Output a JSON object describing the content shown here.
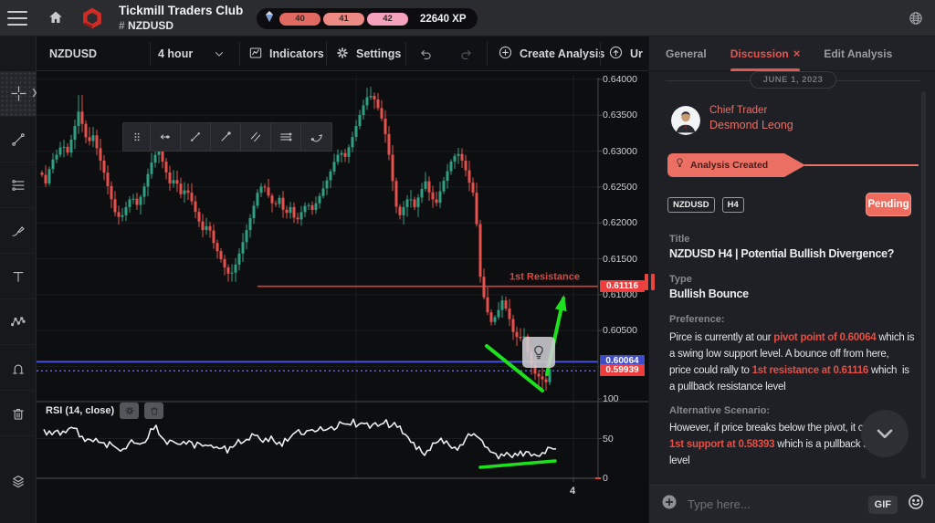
{
  "topbar": {
    "title": "Tickmill Traders Club",
    "channel_hash": "#",
    "channel": "NZDUSD",
    "xp_total": "22640 XP",
    "xp_levels": [
      {
        "label": "40",
        "color": "#e06962"
      },
      {
        "label": "41",
        "color": "#ee8a84"
      },
      {
        "label": "42",
        "color": "#f5a2bd"
      }
    ]
  },
  "chart_toolbar": {
    "symbol": "NZDUSD",
    "timeframe": "4 hour",
    "indicators": "Indicators",
    "settings": "Settings",
    "create_analysis": "Create Analysis",
    "upload": "Ur"
  },
  "chart_data": {
    "type": "candlestick",
    "symbol": "NZDUSD",
    "interval": "4 hour",
    "price_pane": {
      "ylim": [
        0.5951,
        0.6405
      ],
      "ticks": [
        {
          "label": "0.64000",
          "v": 0.64
        },
        {
          "label": "0.63500",
          "v": 0.635
        },
        {
          "label": "0.63000",
          "v": 0.63
        },
        {
          "label": "0.62500",
          "v": 0.625
        },
        {
          "label": "0.62000",
          "v": 0.62
        },
        {
          "label": "0.61500",
          "v": 0.615
        },
        {
          "label": "0.61000",
          "v": 0.61
        },
        {
          "label": "0.60500",
          "v": 0.605
        }
      ],
      "grid_prices": [
        0.64,
        0.635,
        0.63,
        0.625,
        0.62,
        0.615,
        0.61,
        0.605,
        0.6
      ],
      "levels": [
        {
          "v": 0.61116,
          "color": "#e13a35",
          "x1": 242,
          "x2": 615,
          "w": 1.6,
          "dash": ""
        },
        {
          "v": 0.60064,
          "color": "#4650dd",
          "x1": 0,
          "x2": 615,
          "w": 2,
          "dash": ""
        },
        {
          "v": 0.59939,
          "color": "#7678e0",
          "x1": 0,
          "x2": 615,
          "w": 1.2,
          "dash": "2,3"
        }
      ],
      "tags": [
        {
          "label": "0.61116",
          "v": 0.61116,
          "bg": "#ee3d3c"
        },
        {
          "label": "0.60064",
          "v": 0.60064,
          "bg": "#3f4cc9"
        },
        {
          "label": "0.59939",
          "v": 0.59939,
          "bg": "#ee3d3c"
        }
      ],
      "resistance_label": {
        "text": "1st Resistance",
        "color": "#e2443d",
        "v": 0.61116
      }
    },
    "candles": {
      "up_color": "#2fa084",
      "down_color": "#e8504e",
      "anchors": [
        [
          45,
          0.627
        ],
        [
          50,
          0.6255
        ],
        [
          56,
          0.6285
        ],
        [
          62,
          0.6295
        ],
        [
          68,
          0.631
        ],
        [
          74,
          0.6298
        ],
        [
          80,
          0.6325
        ],
        [
          86,
          0.6355
        ],
        [
          90,
          0.6338
        ],
        [
          96,
          0.631
        ],
        [
          102,
          0.6322
        ],
        [
          108,
          0.6295
        ],
        [
          114,
          0.627
        ],
        [
          120,
          0.6242
        ],
        [
          126,
          0.6215
        ],
        [
          132,
          0.6205
        ],
        [
          138,
          0.6222
        ],
        [
          144,
          0.6238
        ],
        [
          150,
          0.6225
        ],
        [
          156,
          0.6242
        ],
        [
          162,
          0.6268
        ],
        [
          168,
          0.6292
        ],
        [
          174,
          0.63
        ],
        [
          180,
          0.6278
        ],
        [
          186,
          0.6255
        ],
        [
          192,
          0.6262
        ],
        [
          198,
          0.624
        ],
        [
          204,
          0.6248
        ],
        [
          210,
          0.623
        ],
        [
          216,
          0.6208
        ],
        [
          222,
          0.619
        ],
        [
          228,
          0.6198
        ],
        [
          234,
          0.6172
        ],
        [
          240,
          0.6155
        ],
        [
          246,
          0.6138
        ],
        [
          252,
          0.6125
        ],
        [
          258,
          0.6142
        ],
        [
          264,
          0.6165
        ],
        [
          270,
          0.619
        ],
        [
          276,
          0.6215
        ],
        [
          282,
          0.6242
        ],
        [
          288,
          0.6255
        ],
        [
          294,
          0.6238
        ],
        [
          300,
          0.6222
        ],
        [
          306,
          0.6235
        ],
        [
          312,
          0.621
        ],
        [
          318,
          0.6222
        ],
        [
          324,
          0.62
        ],
        [
          330,
          0.6215
        ],
        [
          336,
          0.6228
        ],
        [
          342,
          0.6218
        ],
        [
          348,
          0.6232
        ],
        [
          354,
          0.6248
        ],
        [
          360,
          0.6265
        ],
        [
          366,
          0.6285
        ],
        [
          372,
          0.63
        ],
        [
          378,
          0.6292
        ],
        [
          384,
          0.6312
        ],
        [
          390,
          0.6335
        ],
        [
          396,
          0.6358
        ],
        [
          402,
          0.6375
        ],
        [
          408,
          0.6378
        ],
        [
          414,
          0.636
        ],
        [
          420,
          0.6338
        ],
        [
          426,
          0.6295
        ],
        [
          432,
          0.624
        ],
        [
          436,
          0.6205
        ],
        [
          442,
          0.6222
        ],
        [
          448,
          0.6238
        ],
        [
          454,
          0.6222
        ],
        [
          460,
          0.6242
        ],
        [
          466,
          0.6258
        ],
        [
          472,
          0.6235
        ],
        [
          478,
          0.6228
        ],
        [
          484,
          0.6252
        ],
        [
          490,
          0.6272
        ],
        [
          496,
          0.6292
        ],
        [
          502,
          0.6296
        ],
        [
          508,
          0.6282
        ],
        [
          514,
          0.6256
        ],
        [
          520,
          0.6235
        ],
        [
          526,
          0.6125
        ],
        [
          532,
          0.6082
        ],
        [
          538,
          0.6062
        ],
        [
          544,
          0.6072
        ],
        [
          550,
          0.6092
        ],
        [
          556,
          0.6075
        ],
        [
          562,
          0.6048
        ],
        [
          568,
          0.6038
        ],
        [
          574,
          0.6042
        ],
        [
          580,
          0.6008
        ],
        [
          586,
          0.599
        ],
        [
          592,
          0.5984
        ],
        [
          598,
          0.5978
        ],
        [
          602,
          0.5996
        ]
      ],
      "high_overrides": [
        [
          88,
          0.6378
        ],
        [
          406,
          0.639
        ]
      ],
      "low_overrides": [
        [
          252,
          0.6118
        ],
        [
          594,
          0.5966
        ]
      ]
    },
    "rsi_pane": {
      "title": "RSI (14, close)",
      "color": "#eceded",
      "ticks": [
        {
          "label": "100",
          "v": 100
        },
        {
          "label": "50",
          "v": 50
        },
        {
          "label": "0",
          "v": 0
        }
      ],
      "anchors": [
        [
          48,
          60
        ],
        [
          56,
          54
        ],
        [
          62,
          61
        ],
        [
          68,
          56
        ],
        [
          74,
          60
        ],
        [
          80,
          64
        ],
        [
          86,
          58
        ],
        [
          92,
          50
        ],
        [
          98,
          46
        ],
        [
          104,
          52
        ],
        [
          110,
          44
        ],
        [
          116,
          40
        ],
        [
          122,
          46
        ],
        [
          128,
          38
        ],
        [
          134,
          35
        ],
        [
          140,
          42
        ],
        [
          146,
          48
        ],
        [
          152,
          42
        ],
        [
          158,
          45
        ],
        [
          164,
          58
        ],
        [
          170,
          66
        ],
        [
          176,
          52
        ],
        [
          182,
          45
        ],
        [
          188,
          50
        ],
        [
          194,
          44
        ],
        [
          200,
          42
        ],
        [
          206,
          48
        ],
        [
          212,
          40
        ],
        [
          218,
          44
        ],
        [
          224,
          38
        ],
        [
          230,
          42
        ],
        [
          236,
          36
        ],
        [
          242,
          40
        ],
        [
          248,
          35
        ],
        [
          254,
          40
        ],
        [
          260,
          46
        ],
        [
          266,
          42
        ],
        [
          272,
          50
        ],
        [
          278,
          56
        ],
        [
          284,
          50
        ],
        [
          290,
          46
        ],
        [
          296,
          52
        ],
        [
          302,
          46
        ],
        [
          308,
          42
        ],
        [
          314,
          48
        ],
        [
          320,
          54
        ],
        [
          326,
          60
        ],
        [
          332,
          55
        ],
        [
          338,
          62
        ],
        [
          344,
          57
        ],
        [
          350,
          64
        ],
        [
          356,
          60
        ],
        [
          362,
          66
        ],
        [
          368,
          62
        ],
        [
          374,
          70
        ],
        [
          380,
          66
        ],
        [
          386,
          72
        ],
        [
          392,
          66
        ],
        [
          398,
          70
        ],
        [
          404,
          64
        ],
        [
          410,
          70
        ],
        [
          416,
          65
        ],
        [
          422,
          71
        ],
        [
          428,
          63
        ],
        [
          434,
          70
        ],
        [
          440,
          60
        ],
        [
          446,
          52
        ],
        [
          452,
          44
        ],
        [
          458,
          38
        ],
        [
          464,
          30
        ],
        [
          470,
          38
        ],
        [
          476,
          46
        ],
        [
          482,
          50
        ],
        [
          488,
          44
        ],
        [
          494,
          40
        ],
        [
          500,
          36
        ],
        [
          506,
          44
        ],
        [
          512,
          52
        ],
        [
          518,
          58
        ],
        [
          524,
          50
        ],
        [
          530,
          44
        ],
        [
          536,
          36
        ],
        [
          542,
          30
        ],
        [
          548,
          27
        ],
        [
          554,
          31
        ],
        [
          560,
          28
        ],
        [
          566,
          33
        ],
        [
          572,
          30
        ],
        [
          578,
          34
        ],
        [
          584,
          31
        ],
        [
          590,
          29
        ],
        [
          596,
          34
        ],
        [
          602,
          40
        ],
        [
          608,
          36
        ]
      ]
    },
    "time_axis": {
      "labels": [
        {
          "text": "4",
          "x": 588
        }
      ]
    },
    "drawings": {
      "color": "#1ee11e",
      "price_trendline": [
        [
          493,
          301
        ],
        [
          554,
          350
        ]
      ],
      "price_arrow": [
        [
          559,
          332
        ],
        [
          577,
          249
        ]
      ],
      "rsi_trendline": [
        [
          486,
          434
        ],
        [
          568,
          427
        ]
      ]
    }
  },
  "panel": {
    "tabs": [
      {
        "label": "General",
        "active": false,
        "closable": false
      },
      {
        "label": "Discussion",
        "active": true,
        "closable": true
      },
      {
        "label": "Edit Analysis",
        "active": false,
        "closable": false
      }
    ],
    "date": "JUNE 1, 2023",
    "author_role": "Chief Trader",
    "author_name": "Desmond Leong",
    "event": "Analysis Created",
    "tags": [
      "NZDUSD",
      "H4"
    ],
    "status": "Pending",
    "title_label": "Title",
    "title": "NZDUSD H4 | Potential Bullish Divergence?",
    "type_label": "Type",
    "type": "Bullish Bounce",
    "preference_label": "Preference:",
    "preference_lines": [
      [
        {
          "t": "Pirce is currently at our "
        },
        {
          "t": "pivot point of 0.60064",
          "hl": 1
        },
        {
          "t": " which is"
        }
      ],
      [
        {
          "t": "a swing low support level. A bounce off from here,"
        }
      ],
      [
        {
          "t": "price could rally to "
        },
        {
          "t": "1st resistance at 0.61116",
          "hl": 1
        },
        {
          "t": " which  is"
        }
      ],
      [
        {
          "t": "a pullback resistance level"
        }
      ]
    ],
    "alternative_label": "Alternative Scenario:",
    "alternative_lines": [
      [
        {
          "t": "However, if price breaks below the pivot, it co"
        }
      ],
      [
        {
          "t": "1st support at 0.58393",
          "hl": 1
        },
        {
          "t": " which is a pullback s"
        }
      ],
      [
        {
          "t": "level"
        }
      ]
    ]
  },
  "composer": {
    "placeholder": "Type here...",
    "gif": "GIF"
  }
}
